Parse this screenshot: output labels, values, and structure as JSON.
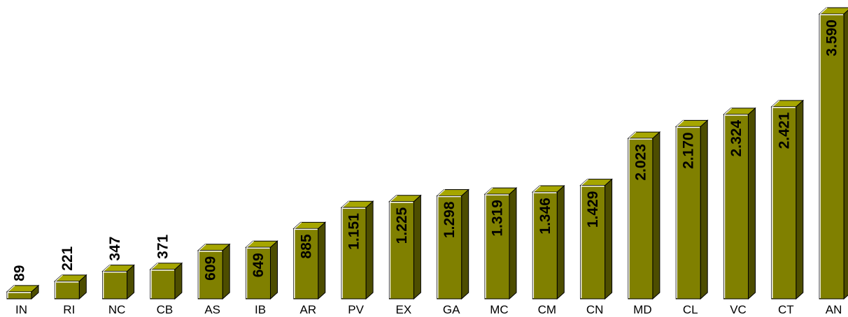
{
  "chart_data": {
    "type": "bar",
    "title": "",
    "xlabel": "",
    "ylabel": "",
    "categories": [
      "IN",
      "RI",
      "NC",
      "CB",
      "AS",
      "IB",
      "AR",
      "PV",
      "EX",
      "GA",
      "MC",
      "CM",
      "CN",
      "MD",
      "CL",
      "VC",
      "CT",
      "AN"
    ],
    "values": [
      89,
      221,
      347,
      371,
      609,
      649,
      885,
      1151,
      1225,
      1298,
      1319,
      1346,
      1429,
      2023,
      2170,
      2324,
      2421,
      3590
    ],
    "value_labels": [
      "89",
      "221",
      "347",
      "371",
      "609",
      "649",
      "885",
      "1.151",
      "1.225",
      "1.298",
      "1.319",
      "1.346",
      "1.429",
      "2.023",
      "2.170",
      "2.324",
      "2.421",
      "3.590"
    ],
    "ylim": [
      0,
      3590
    ],
    "grid": false,
    "legend": "none",
    "bar_style": "3d",
    "colors": {
      "front": "#808000",
      "top": "#A6A600",
      "side": "#4D4D00",
      "outline": "#000000",
      "highlight": "#ffffff"
    }
  }
}
